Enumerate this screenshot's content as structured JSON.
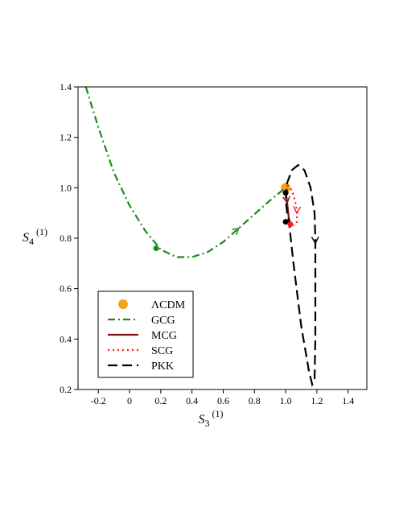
{
  "chart_data": {
    "type": "line",
    "title": "",
    "xlabel": {
      "main": "S",
      "sub": "3",
      "sup": "(1)"
    },
    "ylabel": {
      "main": "S",
      "sub": "4",
      "sup": "(1)"
    },
    "xlim": [
      -0.33,
      1.52
    ],
    "ylim": [
      0.2,
      1.4
    ],
    "xticks": [
      "-0.2",
      "0",
      "0.2",
      "0.4",
      "0.6",
      "0.8",
      "1.0",
      "1.2",
      "1.4"
    ],
    "xtick_values": [
      -0.2,
      0,
      0.2,
      0.4,
      0.6,
      0.8,
      1.0,
      1.2,
      1.4
    ],
    "yticks": [
      "0.2",
      "0.4",
      "0.6",
      "0.8",
      "1.0",
      "1.2",
      "1.4"
    ],
    "ytick_values": [
      0.2,
      0.4,
      0.6,
      0.8,
      1.0,
      1.2,
      1.4
    ],
    "legend_position": "bottom-left",
    "series": [
      {
        "name": "ΛCDM",
        "style": "point",
        "color": "#f5a21b",
        "points": [
          [
            1.0,
            1.0
          ]
        ]
      },
      {
        "name": "GCG",
        "style": "dashdot",
        "color": "#1a8c1a",
        "points": [
          [
            -0.28,
            1.4
          ],
          [
            -0.2,
            1.24
          ],
          [
            -0.1,
            1.06
          ],
          [
            0.0,
            0.93
          ],
          [
            0.1,
            0.83
          ],
          [
            0.2,
            0.755
          ],
          [
            0.3,
            0.725
          ],
          [
            0.4,
            0.725
          ],
          [
            0.5,
            0.745
          ],
          [
            0.6,
            0.785
          ],
          [
            0.7,
            0.84
          ],
          [
            0.8,
            0.895
          ],
          [
            0.9,
            0.95
          ],
          [
            1.0,
            1.0
          ]
        ],
        "markers": [
          [
            0.17,
            0.76
          ]
        ],
        "arrows": [
          [
            0.7,
            0.84
          ]
        ]
      },
      {
        "name": "MCG",
        "style": "solid",
        "color": "#8b1010",
        "points": [
          [
            1.0,
            0.985
          ],
          [
            1.01,
            0.94
          ],
          [
            1.02,
            0.88
          ],
          [
            1.03,
            0.86
          ]
        ],
        "arrows": [
          [
            1.01,
            0.94
          ]
        ]
      },
      {
        "name": "SCG",
        "style": "dotted",
        "color": "#ff1a1a",
        "points": [
          [
            1.01,
            1.01
          ],
          [
            1.04,
            0.99
          ],
          [
            1.06,
            0.95
          ],
          [
            1.075,
            0.9
          ],
          [
            1.07,
            0.86
          ],
          [
            1.05,
            0.85
          ]
        ],
        "arrows": [
          [
            1.07,
            0.9
          ]
        ]
      },
      {
        "name": "PKK",
        "style": "dashed",
        "color": "#000000",
        "points": [
          [
            1.01,
            0.9
          ],
          [
            1.0,
            0.95
          ],
          [
            1.01,
            1.02
          ],
          [
            1.04,
            1.07
          ],
          [
            1.08,
            1.09
          ],
          [
            1.12,
            1.07
          ],
          [
            1.16,
            1.0
          ],
          [
            1.185,
            0.9
          ],
          [
            1.19,
            0.8
          ],
          [
            1.19,
            0.6
          ],
          [
            1.19,
            0.4
          ],
          [
            1.185,
            0.24
          ],
          [
            1.17,
            0.22
          ],
          [
            1.15,
            0.27
          ],
          [
            1.1,
            0.45
          ],
          [
            1.05,
            0.7
          ],
          [
            1.02,
            0.87
          ],
          [
            1.01,
            0.9
          ]
        ],
        "markers": [
          [
            1.0,
            0.98
          ],
          [
            1.0,
            0.865
          ]
        ],
        "arrows": [
          [
            1.19,
            0.78
          ]
        ]
      }
    ],
    "extra_markers": [
      {
        "x": 1.03,
        "y": 0.855,
        "color": "#ff1a1a"
      }
    ]
  }
}
